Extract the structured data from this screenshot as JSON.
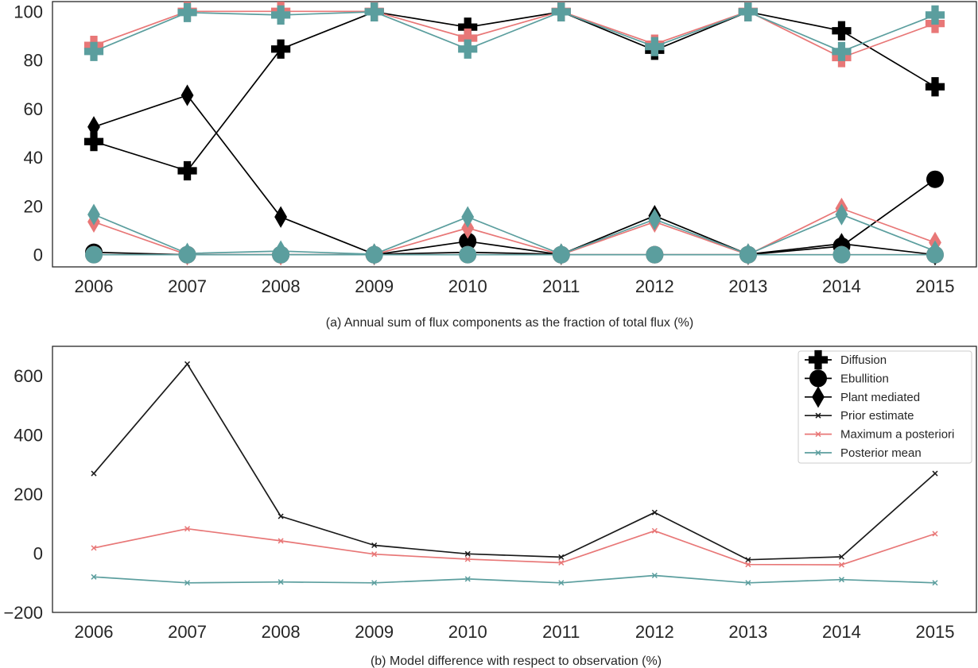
{
  "chart_data": [
    {
      "type": "line",
      "caption": "(a) Annual sum of flux components as the fraction of total flux (%)",
      "x": [
        2006,
        2007,
        2008,
        2009,
        2010,
        2011,
        2012,
        2013,
        2014,
        2015
      ],
      "xticks": [
        "2006",
        "2007",
        "2008",
        "2009",
        "2010",
        "2011",
        "2012",
        "2013",
        "2014",
        "2015"
      ],
      "ylim": [
        -5,
        104
      ],
      "yticks": [
        0,
        20,
        40,
        60,
        80,
        100
      ],
      "ytick_labels": [
        "0",
        "20",
        "40",
        "60",
        "80",
        "100"
      ],
      "grid": false,
      "series": [
        {
          "component": "Diffusion",
          "estimate": "Prior estimate",
          "color": "#000000",
          "marker": "plus",
          "values": [
            46.5,
            34.5,
            84.5,
            99.8,
            93.5,
            99.8,
            84.0,
            99.8,
            92.0,
            69.0
          ]
        },
        {
          "component": "Ebullition",
          "estimate": "Prior estimate",
          "color": "#000000",
          "marker": "circle",
          "values": [
            1.0,
            0.0,
            0.0,
            0.0,
            5.5,
            0.0,
            0.0,
            0.0,
            3.5,
            31.0
          ]
        },
        {
          "component": "Plant mediated",
          "estimate": "Prior estimate",
          "color": "#000000",
          "marker": "diamond",
          "values": [
            52.5,
            65.5,
            15.5,
            0.2,
            1.0,
            0.2,
            16.0,
            0.2,
            4.5,
            0.0
          ]
        },
        {
          "component": "Diffusion",
          "estimate": "Maximum a posteriori",
          "color": "#e87777",
          "marker": "plus",
          "values": [
            86.0,
            100.0,
            100.0,
            100.0,
            89.0,
            100.0,
            86.5,
            100.0,
            81.0,
            95.0
          ]
        },
        {
          "component": "Ebullition",
          "estimate": "Maximum a posteriori",
          "color": "#e87777",
          "marker": "circle",
          "values": [
            0.0,
            0.0,
            0.0,
            0.0,
            0.0,
            0.0,
            0.0,
            0.0,
            0.0,
            0.0
          ]
        },
        {
          "component": "Plant mediated",
          "estimate": "Maximum a posteriori",
          "color": "#e87777",
          "marker": "diamond",
          "values": [
            13.5,
            0.0,
            0.0,
            0.0,
            11.0,
            0.0,
            13.5,
            0.0,
            19.0,
            5.0
          ]
        },
        {
          "component": "Diffusion",
          "estimate": "Posterior mean",
          "color": "#5b9e9e",
          "marker": "plus",
          "values": [
            83.5,
            99.5,
            98.5,
            99.8,
            84.5,
            99.8,
            85.5,
            99.8,
            83.5,
            98.5
          ]
        },
        {
          "component": "Ebullition",
          "estimate": "Posterior mean",
          "color": "#5b9e9e",
          "marker": "circle",
          "values": [
            0.0,
            0.0,
            0.0,
            0.0,
            0.0,
            0.0,
            0.0,
            0.0,
            0.0,
            0.0
          ]
        },
        {
          "component": "Plant mediated",
          "estimate": "Posterior mean",
          "color": "#5b9e9e",
          "marker": "diamond",
          "values": [
            16.5,
            0.5,
            1.5,
            0.2,
            15.5,
            0.2,
            14.5,
            0.2,
            16.5,
            1.5
          ]
        }
      ]
    },
    {
      "type": "line",
      "caption": "(b) Model difference with respect to observation (%)",
      "x": [
        2006,
        2007,
        2008,
        2009,
        2010,
        2011,
        2012,
        2013,
        2014,
        2015
      ],
      "xticks": [
        "2006",
        "2007",
        "2008",
        "2009",
        "2010",
        "2011",
        "2012",
        "2013",
        "2014",
        "2015"
      ],
      "ylim": [
        -200,
        700
      ],
      "yticks": [
        -200,
        0,
        200,
        400,
        600
      ],
      "ytick_labels": [
        "−200",
        "0",
        "200",
        "400",
        "600"
      ],
      "grid": false,
      "series": [
        {
          "name": "Prior estimate",
          "color": "#1a1a1a",
          "marker": "x",
          "values": [
            270,
            640,
            125,
            27,
            -2,
            -13,
            138,
            -22,
            -12,
            270
          ]
        },
        {
          "name": "Maximum a posteriori",
          "color": "#e87777",
          "marker": "x",
          "values": [
            18,
            83,
            42,
            -3,
            -20,
            -32,
            76,
            -38,
            -39,
            66
          ]
        },
        {
          "name": "Posterior mean",
          "color": "#5b9e9e",
          "marker": "x",
          "values": [
            -80,
            -100,
            -97,
            -100,
            -87,
            -100,
            -75,
            -100,
            -89,
            -100
          ]
        }
      ]
    }
  ],
  "legend": {
    "position": "top-right",
    "items": [
      {
        "label": "Diffusion",
        "marker": "plus",
        "color": "#000000"
      },
      {
        "label": "Ebullition",
        "marker": "circle",
        "color": "#000000"
      },
      {
        "label": "Plant mediated",
        "marker": "diamond",
        "color": "#000000"
      },
      {
        "label": "Prior estimate",
        "marker": "x",
        "color": "#1a1a1a"
      },
      {
        "label": "Maximum a posteriori",
        "marker": "x",
        "color": "#e87777"
      },
      {
        "label": "Posterior mean",
        "marker": "x",
        "color": "#5b9e9e"
      }
    ]
  }
}
